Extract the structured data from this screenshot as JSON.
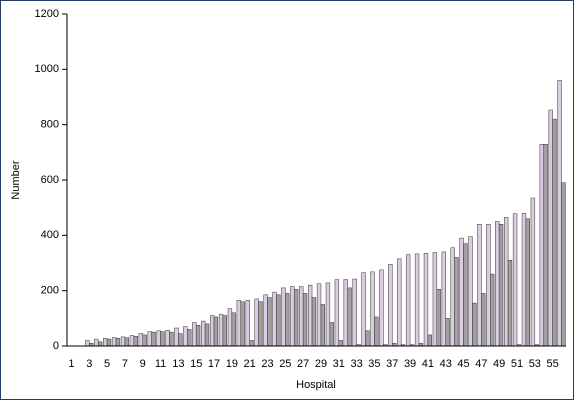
{
  "chart_data": {
    "type": "bar",
    "x_label": "Hospital",
    "y_label": "Number",
    "categories": [
      "1",
      null,
      "3",
      null,
      "5",
      null,
      "7",
      null,
      "9",
      null,
      "11",
      null,
      "13",
      null,
      "15",
      null,
      "17",
      null,
      "19",
      null,
      "21",
      null,
      "23",
      null,
      "25",
      null,
      "27",
      null,
      "29",
      null,
      "31",
      null,
      "33",
      null,
      "35",
      null,
      "37",
      null,
      "39",
      null,
      "41",
      null,
      "43",
      null,
      "45",
      null,
      "47",
      null,
      "49",
      null,
      "51",
      null,
      "53",
      null,
      "55",
      null
    ],
    "series": [
      {
        "color": "#dccbe3",
        "values": [
          0,
          0,
          20,
          25,
          28,
          30,
          33,
          38,
          45,
          52,
          55,
          57,
          65,
          70,
          85,
          90,
          110,
          115,
          135,
          165,
          165,
          170,
          185,
          195,
          210,
          215,
          215,
          220,
          225,
          228,
          240,
          240,
          242,
          265,
          268,
          275,
          295,
          315,
          330,
          333,
          335,
          338,
          340,
          355,
          390,
          395,
          440,
          440,
          450,
          465,
          478,
          480,
          535,
          729,
          853,
          960
        ]
      },
      {
        "color": "#a0a0a0",
        "values": [
          0,
          0,
          10,
          15,
          25,
          28,
          30,
          35,
          40,
          50,
          52,
          50,
          45,
          60,
          75,
          80,
          105,
          110,
          120,
          160,
          20,
          160,
          175,
          185,
          190,
          205,
          190,
          175,
          150,
          85,
          20,
          210,
          5,
          55,
          105,
          5,
          10,
          5,
          5,
          10,
          40,
          205,
          100,
          320,
          370,
          155,
          190,
          260,
          440,
          310,
          5,
          460,
          5,
          729,
          820,
          590
        ]
      }
    ],
    "ylim": [
      0,
      1200
    ],
    "yticks": [
      0,
      200,
      400,
      600,
      800,
      1000,
      1200
    ]
  }
}
